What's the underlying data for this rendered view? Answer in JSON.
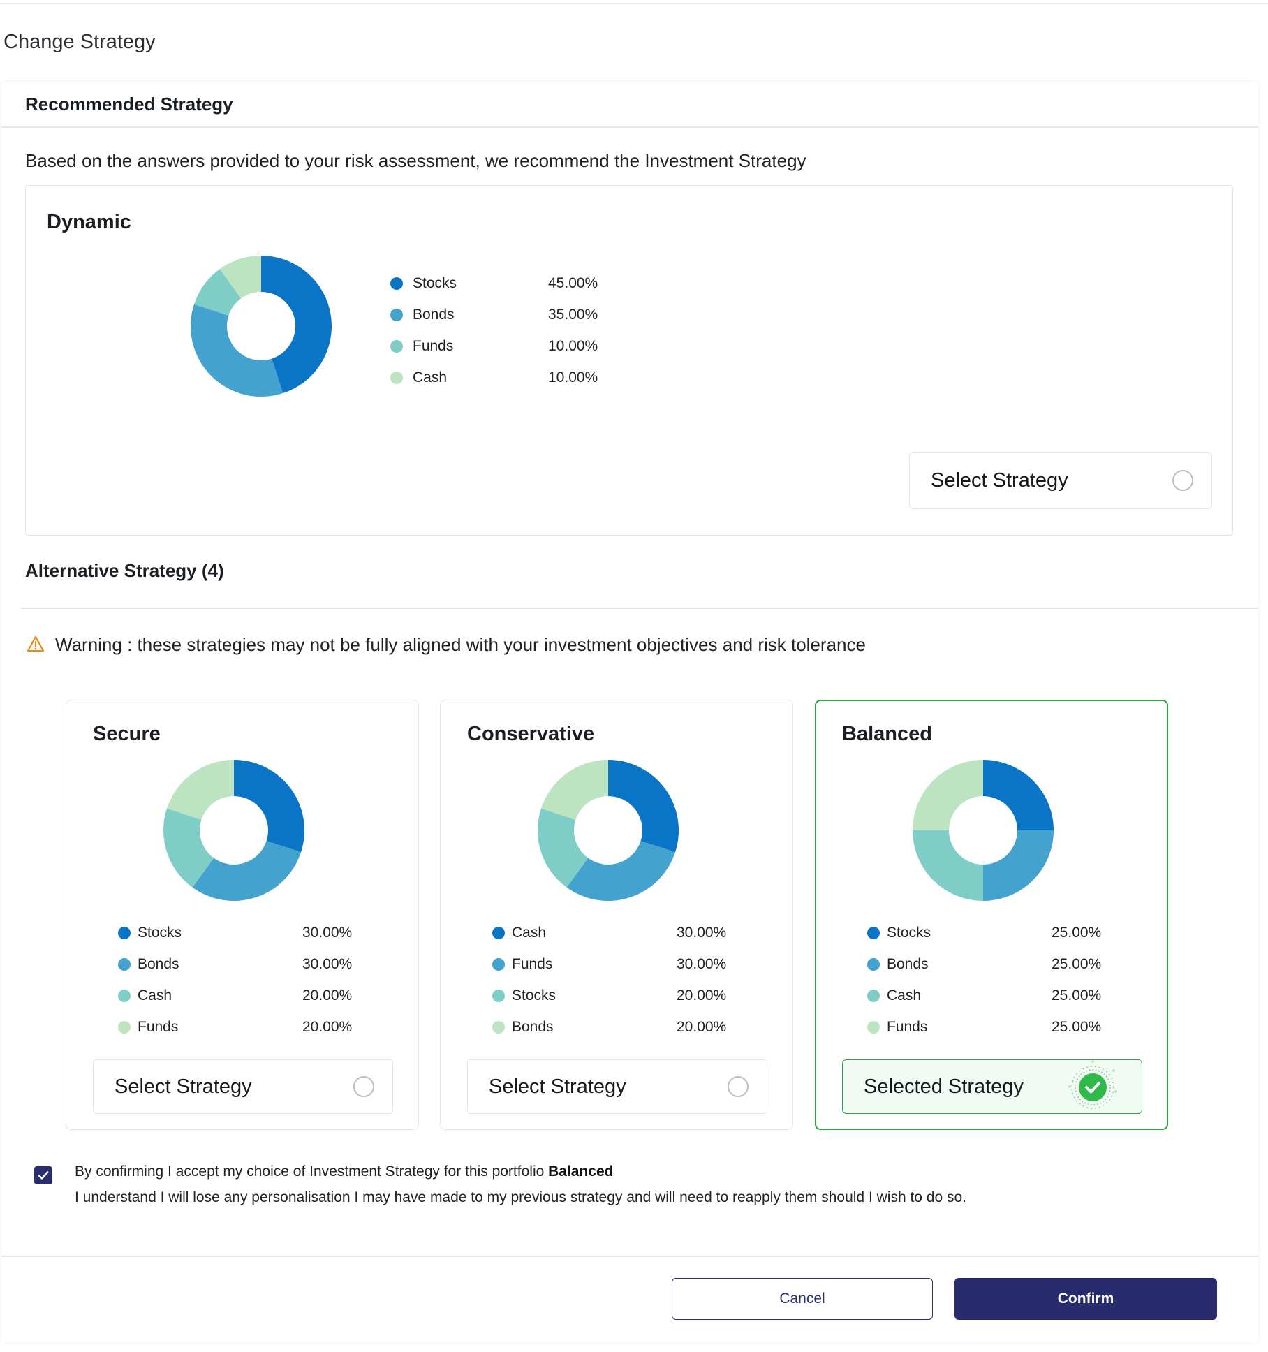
{
  "page": {
    "title": "Change Strategy"
  },
  "recommended": {
    "section_title": "Recommended Strategy",
    "description": "Based on the answers provided to your risk assessment, we recommend the Investment Strategy",
    "card": {
      "name": "Dynamic",
      "select_label": "Select Strategy",
      "legend": [
        {
          "label": "Stocks",
          "value": "45.00%",
          "pct": 45,
          "color": "#0a74c7"
        },
        {
          "label": "Bonds",
          "value": "35.00%",
          "pct": 35,
          "color": "#44a2cf"
        },
        {
          "label": "Funds",
          "value": "10.00%",
          "pct": 10,
          "color": "#7ecdc6"
        },
        {
          "label": "Cash",
          "value": "10.00%",
          "pct": 10,
          "color": "#bde4c0"
        }
      ]
    }
  },
  "alternative": {
    "section_title": "Alternative Strategy (4)",
    "warning": "Warning : these strategies may not be fully aligned with your investment objectives and risk tolerance",
    "cards": [
      {
        "name": "Secure",
        "select_label": "Select Strategy",
        "selected": false,
        "legend": [
          {
            "label": "Stocks",
            "value": "30.00%",
            "pct": 30,
            "color": "#0a74c7"
          },
          {
            "label": "Bonds",
            "value": "30.00%",
            "pct": 30,
            "color": "#44a2cf"
          },
          {
            "label": "Cash",
            "value": "20.00%",
            "pct": 20,
            "color": "#7ecdc6"
          },
          {
            "label": "Funds",
            "value": "20.00%",
            "pct": 20,
            "color": "#bde4c0"
          }
        ]
      },
      {
        "name": "Conservative",
        "select_label": "Select Strategy",
        "selected": false,
        "legend": [
          {
            "label": "Cash",
            "value": "30.00%",
            "pct": 30,
            "color": "#0a74c7"
          },
          {
            "label": "Funds",
            "value": "30.00%",
            "pct": 30,
            "color": "#44a2cf"
          },
          {
            "label": "Stocks",
            "value": "20.00%",
            "pct": 20,
            "color": "#7ecdc6"
          },
          {
            "label": "Bonds",
            "value": "20.00%",
            "pct": 20,
            "color": "#bde4c0"
          }
        ]
      },
      {
        "name": "Balanced",
        "select_label": "Selected Strategy",
        "selected": true,
        "legend": [
          {
            "label": "Stocks",
            "value": "25.00%",
            "pct": 25,
            "color": "#0a74c7"
          },
          {
            "label": "Bonds",
            "value": "25.00%",
            "pct": 25,
            "color": "#44a2cf"
          },
          {
            "label": "Cash",
            "value": "25.00%",
            "pct": 25,
            "color": "#7ecdc6"
          },
          {
            "label": "Funds",
            "value": "25.00%",
            "pct": 25,
            "color": "#bde4c0"
          }
        ]
      }
    ]
  },
  "consent": {
    "checked": true,
    "line1_prefix": "By confirming I accept my choice of Investment Strategy for this portfolio ",
    "line1_strategy": "Balanced",
    "line2": "I understand I will lose any personalisation I may have made to my previous strategy and will need to reapply them should I wish to do so."
  },
  "footer": {
    "cancel_label": "Cancel",
    "confirm_label": "Confirm"
  },
  "colors": {
    "accent": "#292c6c",
    "selected_green": "#2f9e44",
    "warning": "#e08a1e"
  }
}
